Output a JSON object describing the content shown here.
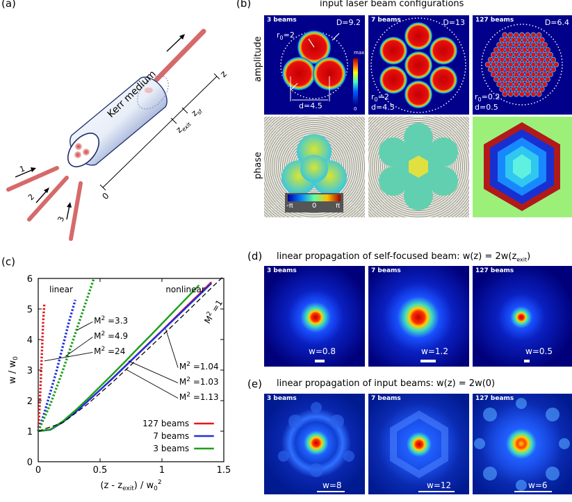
{
  "panel_labels": {
    "a": "(a)",
    "b": "(b)",
    "c": "(c)",
    "d": "(d)",
    "e": "(e)"
  },
  "panel_a": {
    "medium_label": "Kerr medium",
    "axis_label": "z",
    "z_exit": "z",
    "z_exit_sub": "exit",
    "z_sf": "z",
    "z_sf_sub": "sf",
    "zero": "0",
    "beam_numbers": [
      "1",
      "2",
      "3"
    ]
  },
  "panel_b": {
    "title": "input laser beam configurations",
    "row_labels": {
      "amplitude": "amplitude",
      "phase": "phase"
    },
    "configs": [
      {
        "tag": "3 beams",
        "D": "D=9.2",
        "r0": "r",
        "r0_sub": "0",
        "r0_val": "=2",
        "d": "d=4.5"
      },
      {
        "tag": "7 beams",
        "D": "D=13",
        "r0": "r",
        "r0_sub": "0",
        "r0_val": "=2",
        "d": "d=4.5"
      },
      {
        "tag": "127 beams",
        "D": "D=6.4",
        "r0": "r",
        "r0_sub": "0",
        "r0_val": "=0.2",
        "d": "d=0.5"
      }
    ],
    "colorbar": {
      "max": "max",
      "min": "0"
    },
    "phase_bar": {
      "left": "-π",
      "mid": "0",
      "right": "π"
    }
  },
  "panel_d": {
    "title": "linear propagation of self-focused beam:  w(z) = 2w(z",
    "title_sub": "exit",
    "title_end": ")",
    "panels": [
      {
        "tag": "3 beams",
        "w": "w=0.8"
      },
      {
        "tag": "7 beams",
        "w": "w=1.2"
      },
      {
        "tag": "127 beams",
        "w": "w=0.5"
      }
    ]
  },
  "panel_e": {
    "title": "linear propagation of input beams:  w(z) = 2w(0)",
    "panels": [
      {
        "tag": "3 beams",
        "w": "w=8"
      },
      {
        "tag": "7 beams",
        "w": "w=12"
      },
      {
        "tag": "127 beams",
        "w": "w=6"
      }
    ]
  },
  "chart_data": {
    "type": "line",
    "xlabel": "(z - z_exit) / w_0^2",
    "ylabel": "w / w_0",
    "xlim": [
      0,
      1.5
    ],
    "ylim": [
      0,
      6
    ],
    "xticks": [
      "0",
      "0.5",
      "1",
      "1.5"
    ],
    "yticks": [
      "0",
      "1",
      "2",
      "3",
      "4",
      "5",
      "6"
    ],
    "region_labels": [
      "linear",
      "nonlinear"
    ],
    "annotations_linear": [
      "M^2 =3.3",
      "M^2 =4.9",
      "M^2 =24"
    ],
    "annotations_nonlinear": [
      "M^2 =1.04",
      "M^2 =1.03",
      "M^2 =1.13"
    ],
    "reference_label": "M^2 =1",
    "legend": [
      {
        "name": "127 beams",
        "color": "#e8151b"
      },
      {
        "name": "7 beams",
        "color": "#1f2fe0"
      },
      {
        "name": "3 beams",
        "color": "#18a018"
      }
    ],
    "series": [
      {
        "name": "127 beams",
        "style": "solid",
        "color": "#e8151b",
        "x": [
          0,
          0.1,
          0.2,
          0.3,
          0.4,
          0.5,
          0.6,
          0.7,
          0.8,
          0.9,
          1.0,
          1.1,
          1.2,
          1.3,
          1.4
        ],
        "y": [
          1.0,
          1.05,
          1.3,
          1.62,
          1.98,
          2.35,
          2.73,
          3.12,
          3.51,
          3.9,
          4.29,
          4.69,
          5.09,
          5.48,
          5.88
        ]
      },
      {
        "name": "7 beams",
        "style": "solid",
        "color": "#1f2fe0",
        "x": [
          0,
          0.1,
          0.2,
          0.3,
          0.4,
          0.5,
          0.6,
          0.7,
          0.8,
          0.9,
          1.0,
          1.1,
          1.2,
          1.3,
          1.4
        ],
        "y": [
          1.0,
          1.05,
          1.3,
          1.62,
          1.98,
          2.35,
          2.72,
          3.11,
          3.5,
          3.89,
          4.28,
          4.67,
          5.06,
          5.45,
          5.84
        ]
      },
      {
        "name": "3 beams",
        "style": "solid",
        "color": "#18a018",
        "x": [
          0,
          0.1,
          0.2,
          0.3,
          0.4,
          0.5,
          0.6,
          0.7,
          0.8,
          0.9,
          1.0,
          1.1,
          1.2,
          1.3
        ],
        "y": [
          1.0,
          1.06,
          1.33,
          1.68,
          2.06,
          2.46,
          2.86,
          3.27,
          3.69,
          4.1,
          4.52,
          4.94,
          5.36,
          5.78
        ]
      },
      {
        "name": "127 beams linear",
        "style": "dotted",
        "color": "#e8151b",
        "x": [
          0,
          0.01,
          0.02,
          0.03,
          0.04,
          0.05
        ],
        "y": [
          1.0,
          1.7,
          2.6,
          3.6,
          4.6,
          5.2
        ]
      },
      {
        "name": "7 beams linear",
        "style": "dotted",
        "color": "#1f2fe0",
        "x": [
          0,
          0.05,
          0.1,
          0.15,
          0.2,
          0.25,
          0.3
        ],
        "y": [
          1.0,
          1.6,
          2.3,
          3.0,
          3.8,
          4.6,
          5.3
        ]
      },
      {
        "name": "3 beams linear",
        "style": "dotted",
        "color": "#18a018",
        "x": [
          0,
          0.1,
          0.2,
          0.3,
          0.4,
          0.45
        ],
        "y": [
          1.0,
          1.9,
          3.0,
          4.2,
          5.4,
          6.0
        ]
      },
      {
        "name": "M2=1",
        "style": "dashed",
        "color": "#000000",
        "x": [
          0,
          0.2,
          0.4,
          0.6,
          0.8,
          1.0,
          1.2,
          1.4,
          1.5
        ],
        "y": [
          1.0,
          1.28,
          1.89,
          2.6,
          3.36,
          4.12,
          4.9,
          5.69,
          6.08
        ]
      }
    ]
  }
}
